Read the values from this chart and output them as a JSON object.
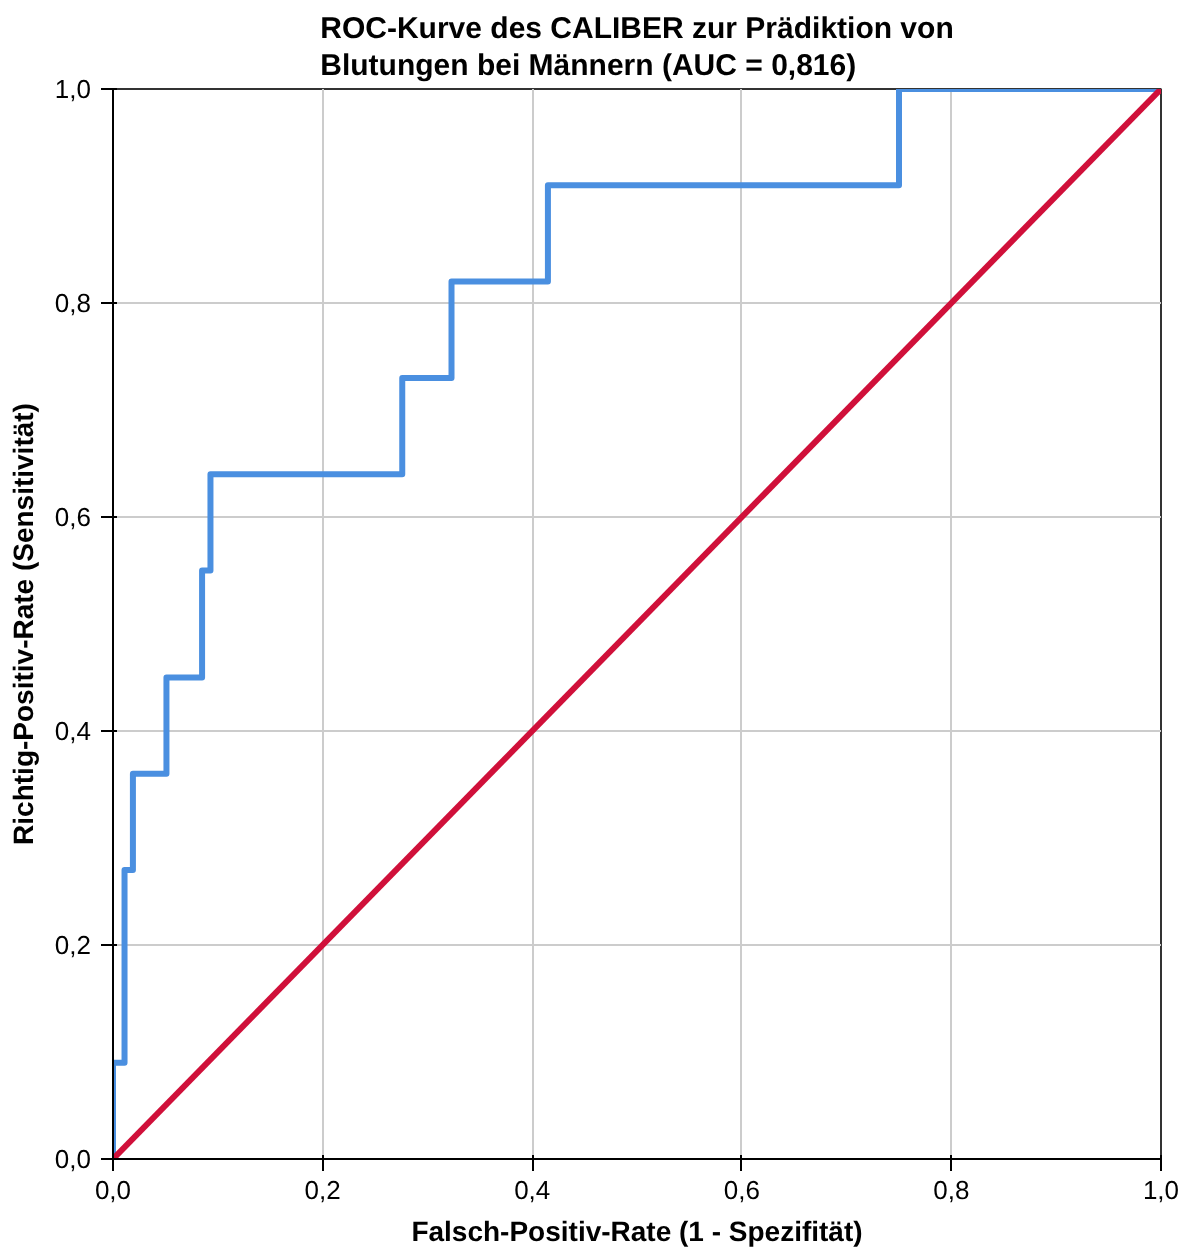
{
  "chart_data": {
    "type": "line",
    "title": "ROC-Kurve des CALIBER zur Prädiktion von\nBlutungen bei Männern (AUC = 0,816)",
    "xlabel": "Falsch-Positiv-Rate (1 - Spezifität)",
    "ylabel": "Richtig-Positiv-Rate (Sensitivität)",
    "series": [
      {
        "type": "step",
        "color": "#4a8fe0",
        "x": [
          0,
          0,
          0.011,
          0.019,
          0.051,
          0.085,
          0.093,
          0.276,
          0.323,
          0.415,
          0.75,
          1
        ],
        "values": [
          0,
          0.09,
          0.27,
          0.36,
          0.45,
          0.55,
          0.64,
          0.73,
          0.82,
          0.91,
          1,
          1
        ]
      },
      {
        "color": "#d0103a",
        "x": [
          0,
          1
        ],
        "values": [
          0,
          1
        ]
      }
    ],
    "xlim": [
      0,
      1
    ],
    "ylim": [
      0,
      1
    ],
    "xticks": [
      {
        "value": 0,
        "label": "0,0"
      },
      {
        "value": 0.2,
        "label": "0,2"
      },
      {
        "value": 0.4,
        "label": "0,4"
      },
      {
        "value": 0.6,
        "label": "0,6"
      },
      {
        "value": 0.8,
        "label": "0,8"
      },
      {
        "value": 1,
        "label": "1,0"
      }
    ],
    "yticks": [
      {
        "value": 0,
        "label": "0,0"
      },
      {
        "value": 0.2,
        "label": "0,2"
      },
      {
        "value": 0.4,
        "label": "0,4"
      },
      {
        "value": 0.6,
        "label": "0,6"
      },
      {
        "value": 0.8,
        "label": "0,8"
      },
      {
        "value": 1,
        "label": "1,0"
      }
    ],
    "grid": true,
    "marker": "none",
    "line_style": "solid"
  }
}
